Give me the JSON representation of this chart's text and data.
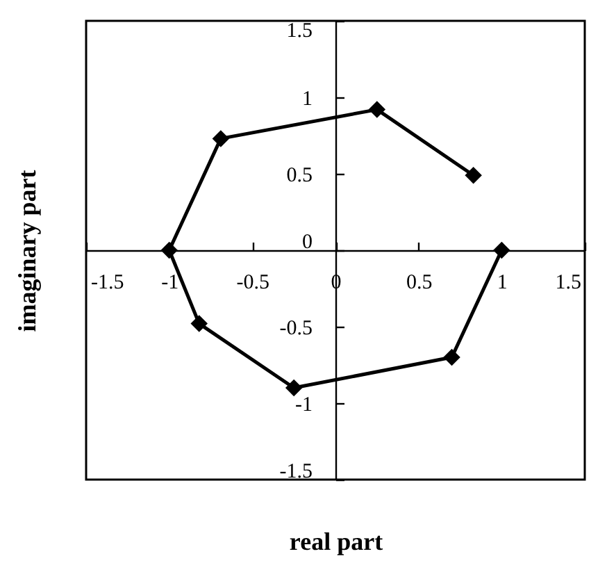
{
  "chart_data": {
    "type": "line",
    "xlabel": "real part",
    "ylabel": "imaginary part",
    "x": [
      0.83,
      0.25,
      -0.69,
      -1,
      -0.82,
      -0.25,
      0.7,
      1
    ],
    "series": [
      {
        "color": "#000000",
        "values": [
          0.49,
          0.92,
          0.73,
          0,
          -0.48,
          -0.9,
          -0.7,
          0
        ]
      }
    ],
    "xlim": [
      -1.5,
      1.5
    ],
    "ylim": [
      -1.5,
      1.5
    ],
    "xticks": [
      -1.5,
      -1,
      -0.5,
      0,
      0.5,
      1,
      1.5
    ],
    "yticks": [
      -1.5,
      -1,
      -0.5,
      0,
      0.5,
      1,
      1.5
    ],
    "marker": "diamond",
    "line_style": "solid"
  }
}
